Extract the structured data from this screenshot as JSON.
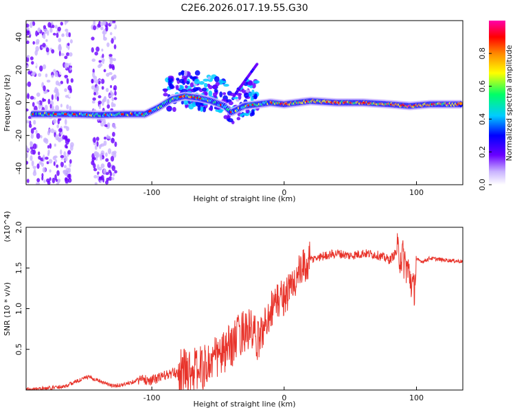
{
  "title": "C2E6.2026.017.19.55.G30",
  "chart_data": [
    {
      "type": "heatmap",
      "name": "spectrogram",
      "xlabel": "Height of straight line (km)",
      "ylabel": "Frequency (Hz)",
      "xlim": [
        -195,
        135
      ],
      "ylim": [
        -50,
        50
      ],
      "xticks": [
        -100,
        0,
        100
      ],
      "yticks": [
        -40,
        -20,
        0,
        20,
        40
      ],
      "colorbar": {
        "label": "Normalized spectral amplitude",
        "range": [
          0,
          1
        ],
        "ticks": [
          0.0,
          0.2,
          0.4,
          0.6,
          0.8
        ],
        "tick_labels": [
          "0.0",
          "0.2",
          "0.4",
          "0.6",
          "0.8"
        ],
        "colors": [
          "#ffffff",
          "#c9b3ff",
          "#6a00ff",
          "#0000ff",
          "#00ccff",
          "#00ff66",
          "#ffff00",
          "#ff8800",
          "#ff0000",
          "#ff00aa"
        ]
      },
      "ridge": {
        "x": [
          -195,
          -180,
          -160,
          -140,
          -120,
          -105,
          -95,
          -85,
          -75,
          -65,
          -55,
          -45,
          -40,
          -35,
          -30,
          -20,
          -10,
          0,
          20,
          40,
          60,
          80,
          95,
          110,
          135
        ],
        "y": [
          -7,
          -7,
          -7,
          -7.5,
          -7,
          -7,
          -3,
          2,
          4,
          3,
          1,
          -2,
          -6,
          -4,
          -2,
          -1,
          0,
          -1,
          1,
          0,
          0,
          -1,
          -2,
          -1,
          -1
        ]
      }
    },
    {
      "type": "line",
      "name": "snr",
      "xlabel": "Height of straight line (km)",
      "ylabel": "SNR (10 * v/v)",
      "scale_note": "(x10^4)",
      "xlim": [
        -195,
        135
      ],
      "ylim": [
        0,
        2.0
      ],
      "xticks": [
        -100,
        0,
        100
      ],
      "yticks": [
        0.5,
        1.0,
        1.5,
        2.0
      ],
      "ytick_labels": [
        "0.5",
        "1.0",
        "1.5",
        "2.0"
      ],
      "color": "#e8332a",
      "series": [
        {
          "name": "SNR",
          "x": [
            -195,
            -180,
            -165,
            -155,
            -148,
            -140,
            -130,
            -120,
            -110,
            -100,
            -90,
            -80,
            -75,
            -70,
            -60,
            -50,
            -45,
            -40,
            -35,
            -30,
            -25,
            -20,
            -15,
            -10,
            -5,
            0,
            5,
            10,
            15,
            20,
            30,
            40,
            50,
            60,
            70,
            80,
            85,
            90,
            95,
            98,
            100,
            105,
            110,
            120,
            135
          ],
          "y": [
            0.01,
            0.02,
            0.05,
            0.12,
            0.16,
            0.12,
            0.05,
            0.07,
            0.13,
            0.12,
            0.18,
            0.22,
            0.25,
            0.24,
            0.28,
            0.42,
            0.45,
            0.55,
            0.65,
            0.75,
            0.72,
            0.6,
            0.78,
            1.0,
            1.1,
            1.15,
            1.25,
            1.4,
            1.5,
            1.6,
            1.65,
            1.68,
            1.65,
            1.68,
            1.66,
            1.6,
            1.7,
            1.62,
            1.4,
            1.2,
            1.6,
            1.58,
            1.62,
            1.6,
            1.58
          ]
        }
      ]
    }
  ]
}
